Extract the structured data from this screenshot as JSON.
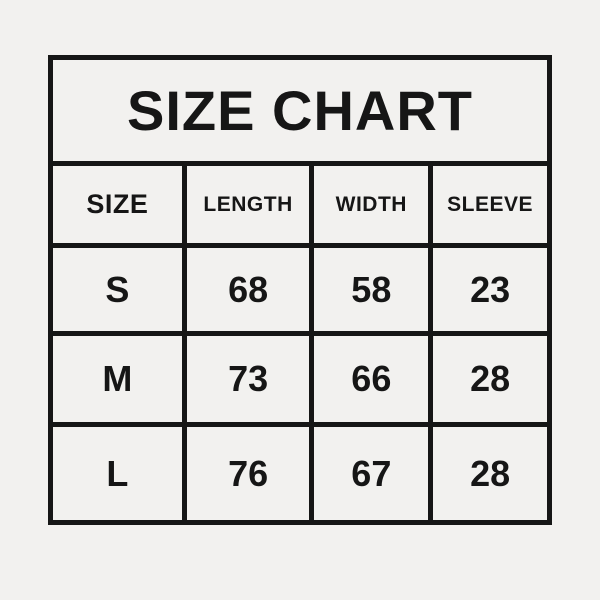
{
  "page": {
    "background_color": "#f2f1ef",
    "line_color": "#161616"
  },
  "chart_data": {
    "type": "table",
    "title": "SIZE CHART",
    "columns": [
      "SIZE",
      "LENGTH",
      "WIDTH",
      "SLEEVE"
    ],
    "rows": [
      [
        "S",
        "68",
        "58",
        "23"
      ],
      [
        "M",
        "73",
        "66",
        "28"
      ],
      [
        "L",
        "76",
        "67",
        "28"
      ]
    ],
    "layout_hints": {
      "grid": "on",
      "title_position": "top-spanning-row",
      "alignment": "center"
    }
  }
}
